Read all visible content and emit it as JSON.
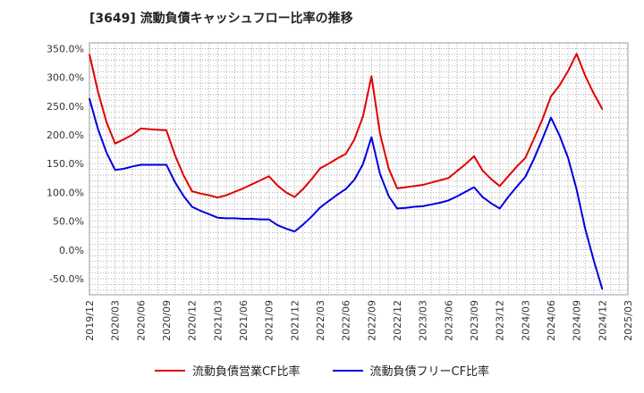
{
  "chart_data": {
    "type": "line",
    "title": "[3649]  流動負債キャッシュフロー比率の推移",
    "x_tick_labels": [
      "2019/12",
      "2020/03",
      "2020/06",
      "2020/09",
      "2020/12",
      "2021/03",
      "2021/06",
      "2021/09",
      "2021/12",
      "2022/03",
      "2022/06",
      "2022/09",
      "2022/12",
      "2023/03",
      "2023/06",
      "2023/09",
      "2023/12",
      "2024/03",
      "2024/06",
      "2024/09",
      "2024/12",
      "2025/03"
    ],
    "y_tick_labels": [
      "350.0%",
      "300.0%",
      "250.0%",
      "200.0%",
      "150.0%",
      "100.0%",
      "50.0%",
      "0.0%",
      "-50.0%"
    ],
    "y_ticks": [
      350,
      300,
      250,
      200,
      150,
      100,
      50,
      0,
      -50
    ],
    "ylim": [
      -78,
      360
    ],
    "xlim": [
      "2019/12",
      "2025/03"
    ],
    "grid": true,
    "legend_position": "bottom",
    "series": [
      {
        "name": "流動負債営業CF比率",
        "color": "#e00000",
        "points": [
          [
            "2019/12",
            340
          ],
          [
            "2020/01",
            275
          ],
          [
            "2020/02",
            222
          ],
          [
            "2020/03",
            185
          ],
          [
            "2020/04",
            192
          ],
          [
            "2020/05",
            200
          ],
          [
            "2020/06",
            211
          ],
          [
            "2020/07",
            210
          ],
          [
            "2020/08",
            209
          ],
          [
            "2020/09",
            208
          ],
          [
            "2020/10",
            165
          ],
          [
            "2020/11",
            130
          ],
          [
            "2020/12",
            102
          ],
          [
            "2021/01",
            98
          ],
          [
            "2021/02",
            95
          ],
          [
            "2021/03",
            91
          ],
          [
            "2021/04",
            95
          ],
          [
            "2021/05",
            101
          ],
          [
            "2021/06",
            107
          ],
          [
            "2021/07",
            114
          ],
          [
            "2021/08",
            121
          ],
          [
            "2021/09",
            128
          ],
          [
            "2021/10",
            112
          ],
          [
            "2021/11",
            100
          ],
          [
            "2021/12",
            92
          ],
          [
            "2022/01",
            106
          ],
          [
            "2022/02",
            123
          ],
          [
            "2022/03",
            142
          ],
          [
            "2022/04",
            150
          ],
          [
            "2022/05",
            159
          ],
          [
            "2022/06",
            167
          ],
          [
            "2022/07",
            192
          ],
          [
            "2022/08",
            232
          ],
          [
            "2022/09",
            302
          ],
          [
            "2022/10",
            202
          ],
          [
            "2022/11",
            142
          ],
          [
            "2022/12",
            107
          ],
          [
            "2023/01",
            109
          ],
          [
            "2023/02",
            111
          ],
          [
            "2023/03",
            113
          ],
          [
            "2023/04",
            117
          ],
          [
            "2023/05",
            121
          ],
          [
            "2023/06",
            125
          ],
          [
            "2023/07",
            137
          ],
          [
            "2023/08",
            149
          ],
          [
            "2023/09",
            163
          ],
          [
            "2023/10",
            138
          ],
          [
            "2023/11",
            123
          ],
          [
            "2023/12",
            111
          ],
          [
            "2024/01",
            128
          ],
          [
            "2024/02",
            145
          ],
          [
            "2024/03",
            160
          ],
          [
            "2024/04",
            193
          ],
          [
            "2024/05",
            227
          ],
          [
            "2024/06",
            267
          ],
          [
            "2024/07",
            286
          ],
          [
            "2024/08",
            311
          ],
          [
            "2024/09",
            341
          ],
          [
            "2024/10",
            303
          ],
          [
            "2024/11",
            272
          ],
          [
            "2024/12",
            245
          ]
        ]
      },
      {
        "name": "流動負債フリーCF比率",
        "color": "#0000e0",
        "points": [
          [
            "2019/12",
            263
          ],
          [
            "2020/01",
            210
          ],
          [
            "2020/02",
            169
          ],
          [
            "2020/03",
            139
          ],
          [
            "2020/04",
            141
          ],
          [
            "2020/05",
            145
          ],
          [
            "2020/06",
            148
          ],
          [
            "2020/07",
            148
          ],
          [
            "2020/08",
            148
          ],
          [
            "2020/09",
            148
          ],
          [
            "2020/10",
            118
          ],
          [
            "2020/11",
            94
          ],
          [
            "2020/12",
            75
          ],
          [
            "2021/01",
            68
          ],
          [
            "2021/02",
            62
          ],
          [
            "2021/03",
            56
          ],
          [
            "2021/04",
            55
          ],
          [
            "2021/05",
            55
          ],
          [
            "2021/06",
            54
          ],
          [
            "2021/07",
            54
          ],
          [
            "2021/08",
            53
          ],
          [
            "2021/09",
            53
          ],
          [
            "2021/10",
            43
          ],
          [
            "2021/11",
            37
          ],
          [
            "2021/12",
            32
          ],
          [
            "2022/01",
            44
          ],
          [
            "2022/02",
            58
          ],
          [
            "2022/03",
            74
          ],
          [
            "2022/04",
            85
          ],
          [
            "2022/05",
            96
          ],
          [
            "2022/06",
            106
          ],
          [
            "2022/07",
            122
          ],
          [
            "2022/08",
            149
          ],
          [
            "2022/09",
            196
          ],
          [
            "2022/10",
            132
          ],
          [
            "2022/11",
            94
          ],
          [
            "2022/12",
            72
          ],
          [
            "2023/01",
            73
          ],
          [
            "2023/02",
            75
          ],
          [
            "2023/03",
            76
          ],
          [
            "2023/04",
            79
          ],
          [
            "2023/05",
            82
          ],
          [
            "2023/06",
            86
          ],
          [
            "2023/07",
            93
          ],
          [
            "2023/08",
            101
          ],
          [
            "2023/09",
            109
          ],
          [
            "2023/10",
            92
          ],
          [
            "2023/11",
            81
          ],
          [
            "2023/12",
            72
          ],
          [
            "2024/01",
            92
          ],
          [
            "2024/02",
            110
          ],
          [
            "2024/03",
            127
          ],
          [
            "2024/04",
            158
          ],
          [
            "2024/05",
            193
          ],
          [
            "2024/06",
            230
          ],
          [
            "2024/07",
            199
          ],
          [
            "2024/08",
            160
          ],
          [
            "2024/09",
            105
          ],
          [
            "2024/10",
            37
          ],
          [
            "2024/11",
            -18
          ],
          [
            "2024/12",
            -68
          ]
        ]
      }
    ]
  }
}
